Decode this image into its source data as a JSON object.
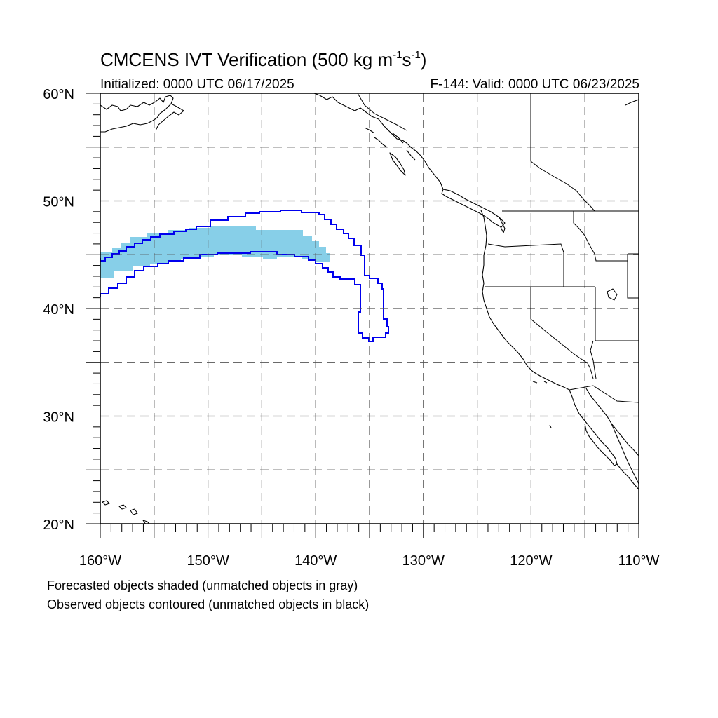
{
  "title": {
    "main": "CMCENS IVT Verification (500 kg m",
    "sup1": "-1",
    "mid": "s",
    "sup2": "-1",
    "end": ")"
  },
  "init_label": "Initialized: 0000 UTC 06/17/2025",
  "valid_label": "F-144: Valid: 0000 UTC 06/23/2025",
  "map": {
    "lon_range": [
      -160,
      -110
    ],
    "lat_range": [
      20,
      60
    ],
    "grid_interval_deg": 5,
    "lat_ticks": [
      "20°N",
      "30°N",
      "40°N",
      "50°N",
      "60°N"
    ],
    "lon_ticks": [
      "160°W",
      "150°W",
      "140°W",
      "130°W",
      "120°W",
      "110°W"
    ],
    "forecast_fill_color": "#87cfe8",
    "observed_contour_color": "#0000ee",
    "coastline_color": "#000000"
  },
  "legend_notes": [
    "Forecasted objects shaded (unmatched objects in gray)",
    "Observed objects contoured (unmatched objects in black)"
  ]
}
